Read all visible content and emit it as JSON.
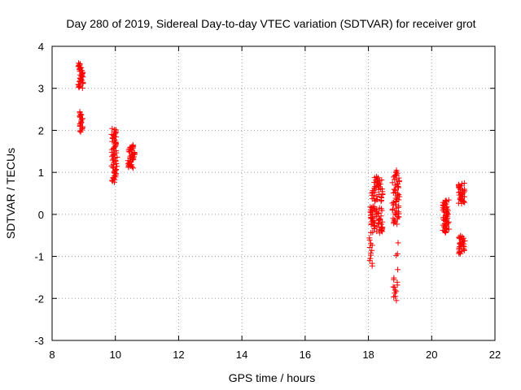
{
  "chart_data": {
    "type": "scatter",
    "title": "Day 280 of 2019, Sidereal Day-to-day VTEC variation (SDTVAR) for receiver grot",
    "xlabel": "GPS time / hours",
    "ylabel": "SDTVAR / TECUs",
    "xlim": [
      8,
      22
    ],
    "ylim": [
      -3,
      4
    ],
    "xticks": [
      8,
      10,
      12,
      14,
      16,
      18,
      20,
      22
    ],
    "yticks": [
      -3,
      -2,
      -1,
      0,
      1,
      2,
      3,
      4
    ],
    "grid": true,
    "marker": "+",
    "marker_color": "#ff0000",
    "series": [
      {
        "name": "SDTVAR",
        "clusters": [
          {
            "x_range": [
              8.82,
              8.98
            ],
            "y_range": [
              3.0,
              3.6
            ],
            "n": 40
          },
          {
            "x_range": [
              8.85,
              8.97
            ],
            "y_range": [
              1.95,
              2.45
            ],
            "n": 22
          },
          {
            "x_range": [
              9.88,
              10.06
            ],
            "y_range": [
              0.75,
              2.05
            ],
            "n": 65
          },
          {
            "x_range": [
              10.4,
              10.62
            ],
            "y_range": [
              1.1,
              1.65
            ],
            "n": 45
          },
          {
            "x_range": [
              18.02,
              18.14
            ],
            "y_range": [
              -1.25,
              -0.55
            ],
            "n": 12
          },
          {
            "x_range": [
              18.05,
              18.45
            ],
            "y_range": [
              -0.45,
              0.2
            ],
            "n": 60
          },
          {
            "x_range": [
              18.1,
              18.45
            ],
            "y_range": [
              0.3,
              0.9
            ],
            "n": 45
          },
          {
            "x_range": [
              18.75,
              18.98
            ],
            "y_range": [
              -0.25,
              1.05
            ],
            "n": 60
          },
          {
            "x_range": [
              18.78,
              18.92
            ],
            "y_range": [
              -2.05,
              -1.5
            ],
            "n": 12
          },
          {
            "x_range": [
              18.85,
              18.95
            ],
            "y_range": [
              -1.35,
              -0.6
            ],
            "n": 4
          },
          {
            "x_range": [
              20.35,
              20.55
            ],
            "y_range": [
              -0.45,
              0.35
            ],
            "n": 55
          },
          {
            "x_range": [
              20.85,
              21.05
            ],
            "y_range": [
              0.25,
              0.75
            ],
            "n": 35
          },
          {
            "x_range": [
              20.85,
              21.05
            ],
            "y_range": [
              -0.95,
              -0.5
            ],
            "n": 30
          }
        ]
      }
    ]
  }
}
